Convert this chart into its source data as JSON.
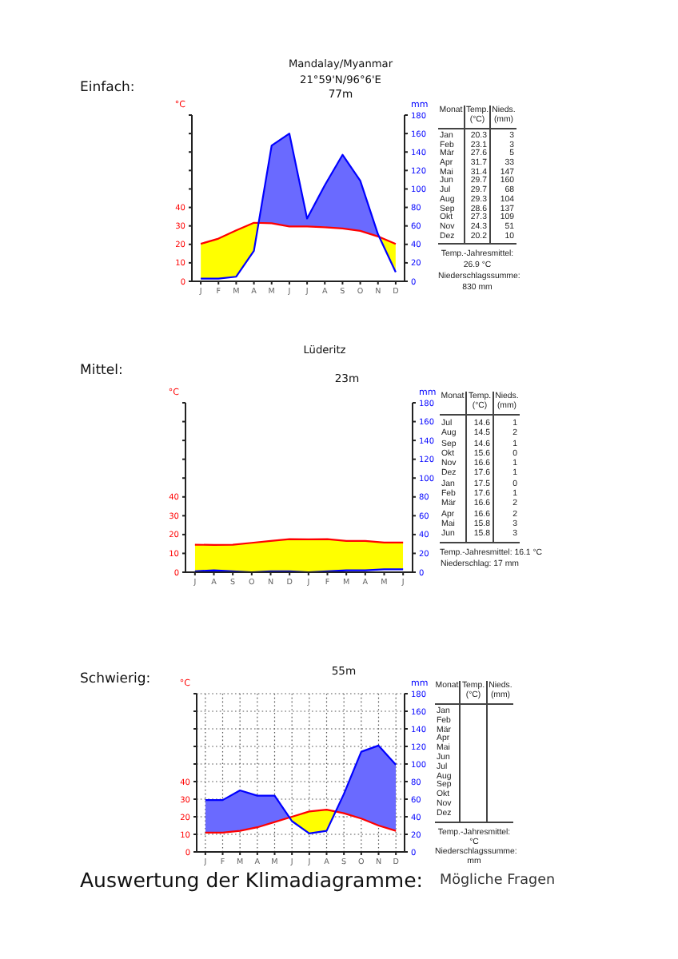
{
  "chart_data": [
    {
      "type": "line",
      "title": "Mandalay/Myanmar",
      "subtitle": "21°59'N/96°6'E",
      "ylabel": "°C",
      "y2label": "mm",
      "annotations": [
        "Einfach:",
        "77m"
      ],
      "categories": [
        "J",
        "F",
        "M",
        "A",
        "M",
        "J",
        "J",
        "A",
        "S",
        "O",
        "N",
        "D"
      ],
      "series": [
        {
          "type": "line",
          "color": "#ff0000",
          "values": [
            20.3,
            23.1,
            27.6,
            31.7,
            31.4,
            29.7,
            29.7,
            29.3,
            28.6,
            27.3,
            24.3,
            20.2
          ]
        },
        {
          "type": "line",
          "color": "#0000ff",
          "axis": "y2",
          "values": [
            3,
            3,
            5,
            33,
            147,
            160,
            68,
            104,
            137,
            109,
            51,
            10
          ]
        },
        {
          "type": "area",
          "color": "#6a6aff",
          "axis": "y2",
          "values": [
            null,
            null,
            null,
            null,
            null,
            null,
            null,
            null,
            null,
            null,
            null,
            null
          ],
          "lower": [
            41,
            46,
            55,
            63,
            63,
            59,
            59,
            59,
            57,
            55,
            49,
            40
          ],
          "upper": [
            41,
            46,
            55,
            63,
            147,
            160,
            68,
            104,
            137,
            109,
            51,
            40
          ]
        },
        {
          "type": "area",
          "color": "#ffff00",
          "axis": "y2",
          "values": [
            null,
            null,
            null,
            null,
            null,
            null,
            null,
            null,
            null,
            null,
            null,
            null
          ],
          "lower": [
            3,
            3,
            5,
            33,
            63,
            59,
            59,
            59,
            57,
            55,
            49,
            10
          ],
          "upper": [
            41,
            46,
            55,
            63,
            63,
            59,
            59,
            59,
            57,
            55,
            49,
            40
          ]
        }
      ],
      "ylim": [
        0,
        90
      ],
      "yticks": [
        0,
        10,
        20,
        30,
        40,
        {
          "value": 50,
          "label": null
        },
        {
          "value": 60,
          "label": null
        },
        {
          "value": 70,
          "label": null
        },
        {
          "value": 80,
          "label": null
        },
        {
          "value": 90,
          "label": null
        }
      ],
      "y2lim": [
        0,
        180
      ],
      "y2ticks": [
        0,
        20,
        40,
        60,
        80,
        100,
        120,
        140,
        160,
        180
      ]
    },
    {
      "type": "other",
      "xlabel": "Monat",
      "categories": [
        "Jan",
        "Feb",
        "Mär",
        "Apr",
        "Mai",
        "Jun",
        "Jul",
        "Aug",
        "Sep",
        "Okt",
        "Nov",
        "Dez"
      ],
      "series": [
        {
          "name": "Temp.\n(°C)",
          "values": [
            20.3,
            23.1,
            27.6,
            31.7,
            31.4,
            29.7,
            29.7,
            29.3,
            28.6,
            27.3,
            24.3,
            20.2
          ]
        },
        {
          "name": "Nieds.\n(mm)",
          "values": [
            3,
            3,
            5,
            33,
            147,
            160,
            68,
            104,
            137,
            109,
            51,
            10
          ]
        }
      ],
      "data_labels": true,
      "annotations": [
        "Temp.-Jahresmittel:",
        "26.9 °C",
        "Niederschlagssumme:",
        "830 mm"
      ]
    },
    {
      "type": "line",
      "title": "Lüderitz",
      "ylabel": "°C",
      "y2label": "mm",
      "annotations": [
        "Mittel:",
        "23m"
      ],
      "categories": [
        "J",
        "A",
        "S",
        "O",
        "N",
        "D",
        "J",
        "F",
        "M",
        "A",
        "M",
        "J"
      ],
      "series": [
        {
          "type": "line",
          "color": "#ff0000",
          "values": [
            14.6,
            14.5,
            14.6,
            15.6,
            16.6,
            17.6,
            17.5,
            17.6,
            16.6,
            16.6,
            15.8,
            15.8
          ]
        },
        {
          "type": "line",
          "color": "#0000ff",
          "axis": "y2",
          "values": [
            1,
            2,
            1,
            0,
            1,
            1,
            0,
            1,
            2,
            2,
            3,
            3
          ]
        },
        {
          "type": "area",
          "color": "#ffff00",
          "axis": "y2",
          "values": [
            null,
            null,
            null,
            null,
            null,
            null,
            null,
            null,
            null,
            null,
            null,
            null
          ],
          "lower": [
            1,
            2,
            1,
            0,
            1,
            1,
            0,
            1,
            2,
            2,
            3,
            3
          ],
          "upper": [
            29,
            29,
            29,
            31,
            33,
            35,
            35,
            35,
            33,
            33,
            32,
            32
          ]
        }
      ],
      "ylim": [
        0,
        90
      ],
      "yticks": [
        0,
        10,
        20,
        30,
        40,
        {
          "value": 50,
          "label": null
        },
        {
          "value": 60,
          "label": null
        },
        {
          "value": 70,
          "label": null
        },
        {
          "value": 80,
          "label": null
        },
        {
          "value": 90,
          "label": null
        }
      ],
      "y2lim": [
        0,
        180
      ],
      "y2ticks": [
        0,
        20,
        40,
        60,
        80,
        100,
        120,
        140,
        160,
        180
      ]
    },
    {
      "type": "other",
      "xlabel": "Monat",
      "categories": [
        "Jul",
        "Aug",
        "Sep",
        "Okt",
        "Nov",
        "Dez",
        "Jan",
        "Feb",
        "Mär",
        "Apr",
        "Mai",
        "Jun"
      ],
      "series": [
        {
          "name": "Temp.\n(°C)",
          "values": [
            14.6,
            14.5,
            14.6,
            15.6,
            16.6,
            17.6,
            17.5,
            17.6,
            16.6,
            16.6,
            15.8,
            15.8
          ]
        },
        {
          "name": "Nieds.\n(mm)",
          "values": [
            1,
            2,
            1,
            0,
            1,
            1,
            0,
            1,
            2,
            2,
            3,
            3
          ]
        }
      ],
      "data_labels": true,
      "annotations": [
        "Temp.-Jahresmittel: 16.1 °C",
        "Niederschlag: 17 mm"
      ]
    },
    {
      "type": "line",
      "ylabel": "°C",
      "y2label": "mm",
      "annotations": [
        "Schwierig:",
        "55m"
      ],
      "categories": [
        "J",
        "F",
        "M",
        "A",
        "M",
        "J",
        "J",
        "A",
        "S",
        "O",
        "N",
        "D"
      ],
      "series": [
        {
          "type": "line",
          "color": "#ff0000",
          "values": [
            11,
            11,
            12,
            14,
            17,
            20,
            23,
            24,
            22,
            19,
            15,
            12
          ]
        },
        {
          "type": "line",
          "color": "#0000ff",
          "axis": "y2",
          "values": [
            59,
            59,
            70,
            64,
            64,
            35,
            21,
            24,
            66,
            114,
            121,
            99
          ]
        },
        {
          "type": "area",
          "color": "#6a6aff",
          "axis": "y2",
          "values": [
            null,
            null,
            null,
            null,
            null,
            null,
            null,
            null,
            null,
            null,
            null,
            null
          ],
          "lower": [
            22,
            22,
            24,
            28,
            34,
            40,
            46,
            48,
            44,
            38,
            30,
            24
          ],
          "upper": [
            59,
            59,
            70,
            64,
            64,
            40,
            46,
            48,
            66,
            114,
            121,
            99
          ]
        },
        {
          "type": "area",
          "color": "#ffff00",
          "axis": "y2",
          "values": [
            null,
            null,
            null,
            null,
            null,
            null,
            null,
            null,
            null,
            null,
            null,
            null
          ],
          "lower": [
            22,
            22,
            24,
            28,
            34,
            35,
            21,
            24,
            44,
            38,
            30,
            24
          ],
          "upper": [
            22,
            22,
            24,
            28,
            34,
            40,
            46,
            48,
            44,
            38,
            30,
            24
          ]
        }
      ],
      "ylim": [
        0,
        90
      ],
      "yticks": [
        0,
        10,
        20,
        30,
        40,
        {
          "value": 50,
          "label": null
        },
        {
          "value": 60,
          "label": null
        },
        {
          "value": 70,
          "label": null
        },
        {
          "value": 80,
          "label": null
        },
        {
          "value": 90,
          "label": null
        }
      ],
      "y2lim": [
        0,
        180
      ],
      "y2ticks": [
        0,
        20,
        40,
        60,
        80,
        100,
        120,
        140,
        160,
        180
      ],
      "grid": true
    },
    {
      "type": "other",
      "xlabel": "Monat",
      "categories": [
        "Jan",
        "Feb",
        "Mär",
        "Apr",
        "Mai",
        "Jun",
        "Jul",
        "Aug",
        "Sep",
        "Okt",
        "Nov",
        "Dez"
      ],
      "series": [
        {
          "name": "Temp.\n(°C)",
          "values": [
            null,
            null,
            null,
            null,
            null,
            null,
            null,
            null,
            null,
            null,
            null,
            null
          ]
        },
        {
          "name": "Nieds.\n(mm)",
          "values": [
            null,
            null,
            null,
            null,
            null,
            null,
            null,
            null,
            null,
            null,
            null,
            null
          ]
        }
      ],
      "annotations": [
        "Temp.-Jahresmittel:",
        "°C",
        "Niederschlagssumme:",
        "mm"
      ]
    },
    {
      "type": "other",
      "title": "Auswertung der Klimadiagramme:",
      "subtitle": "Mögliche Fragen"
    }
  ]
}
